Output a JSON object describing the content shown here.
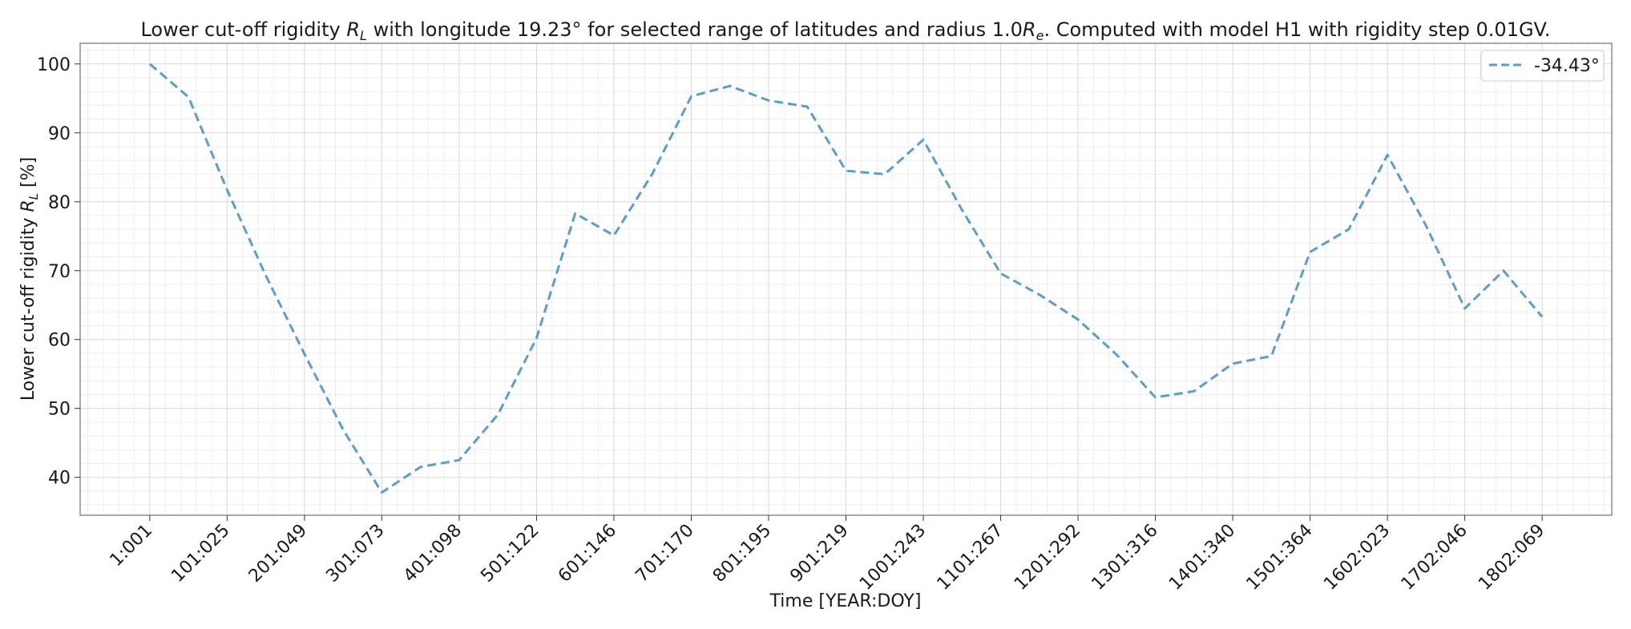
{
  "chart_data": {
    "type": "line",
    "title": "Lower cut-off rigidity R_L with longitude 19.23° for selected range of latitudes and radius 1.0R_e. Computed with model H1 with rigidity step 0.01GV.",
    "title_parts": {
      "p1": "Lower cut-off rigidity ",
      "R": "R",
      "L": "L",
      "p2": " with longitude 19.23° for selected range of latitudes and radius 1.0",
      "Re_R": "R",
      "Re_e": "e",
      "p3": ". Computed with model H1 with rigidity step 0.01GV."
    },
    "xlabel": "Time [YEAR:DOY]",
    "ylabel": "Lower cut-off rigidity R_L [%]",
    "ylabel_parts": {
      "p1": "Lower cut-off rigidity ",
      "R": "R",
      "L": "L",
      "p2": " [%]"
    },
    "xlim": [
      -90,
      1890
    ],
    "ylim": [
      34.5,
      103
    ],
    "yticks": [
      40,
      50,
      60,
      70,
      80,
      90,
      100
    ],
    "xticks": [
      {
        "pos": 0,
        "label": "1:001"
      },
      {
        "pos": 100,
        "label": "101:025"
      },
      {
        "pos": 200,
        "label": "201:049"
      },
      {
        "pos": 300,
        "label": "301:073"
      },
      {
        "pos": 400,
        "label": "401:098"
      },
      {
        "pos": 500,
        "label": "501:122"
      },
      {
        "pos": 600,
        "label": "601:146"
      },
      {
        "pos": 700,
        "label": "701:170"
      },
      {
        "pos": 800,
        "label": "801:195"
      },
      {
        "pos": 900,
        "label": "901:219"
      },
      {
        "pos": 1000,
        "label": "1001:243"
      },
      {
        "pos": 1100,
        "label": "1101:267"
      },
      {
        "pos": 1200,
        "label": "1201:292"
      },
      {
        "pos": 1300,
        "label": "1301:316"
      },
      {
        "pos": 1400,
        "label": "1401:340"
      },
      {
        "pos": 1500,
        "label": "1501:364"
      },
      {
        "pos": 1600,
        "label": "1602:023"
      },
      {
        "pos": 1700,
        "label": "1702:046"
      },
      {
        "pos": 1800,
        "label": "1802:069"
      }
    ],
    "grid": true,
    "legend_position": "top-right",
    "series": [
      {
        "name": "-34.43°",
        "color": "#5a9ec9",
        "style": "dashed",
        "x": [
          0,
          50,
          100,
          150,
          200,
          250,
          300,
          350,
          400,
          450,
          500,
          550,
          600,
          650,
          700,
          750,
          800,
          850,
          900,
          950,
          1000,
          1050,
          1100,
          1150,
          1200,
          1250,
          1300,
          1350,
          1400,
          1450,
          1500,
          1550,
          1600,
          1650,
          1700,
          1750,
          1800
        ],
        "values": [
          100,
          95.2,
          81.7,
          69.3,
          57.9,
          46.9,
          37.8,
          41.5,
          42.5,
          49.1,
          60.2,
          78.3,
          75.1,
          84.1,
          95.3,
          96.8,
          94.7,
          93.8,
          84.5,
          84.0,
          89.0,
          78.8,
          69.6,
          66.5,
          62.9,
          57.8,
          51.6,
          52.5,
          56.5,
          57.6,
          72.7,
          76.0,
          86.8,
          76.5,
          64.5,
          70.0,
          63.3
        ]
      }
    ]
  }
}
